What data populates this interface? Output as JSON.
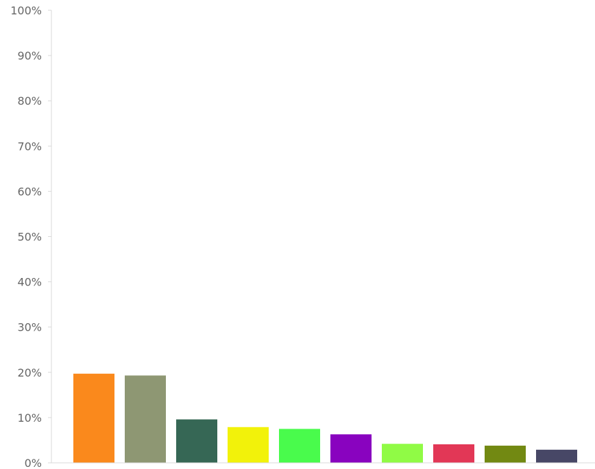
{
  "chart_data": {
    "type": "bar",
    "title": "",
    "xlabel": "",
    "ylabel": "",
    "ylim": [
      0,
      100
    ],
    "yticks": [
      "0%",
      "10%",
      "20%",
      "30%",
      "40%",
      "50%",
      "60%",
      "70%",
      "80%",
      "90%",
      "100%"
    ],
    "grid": false,
    "legend": "none",
    "values": [
      19.7,
      19.3,
      9.6,
      7.9,
      7.5,
      6.3,
      4.2,
      4.1,
      3.8,
      2.9
    ],
    "colors": [
      "#fa891c",
      "#8e9773",
      "#366755",
      "#f2f20a",
      "#49fb4c",
      "#8903bf",
      "#90fb45",
      "#e23756",
      "#728912",
      "#474766"
    ]
  }
}
